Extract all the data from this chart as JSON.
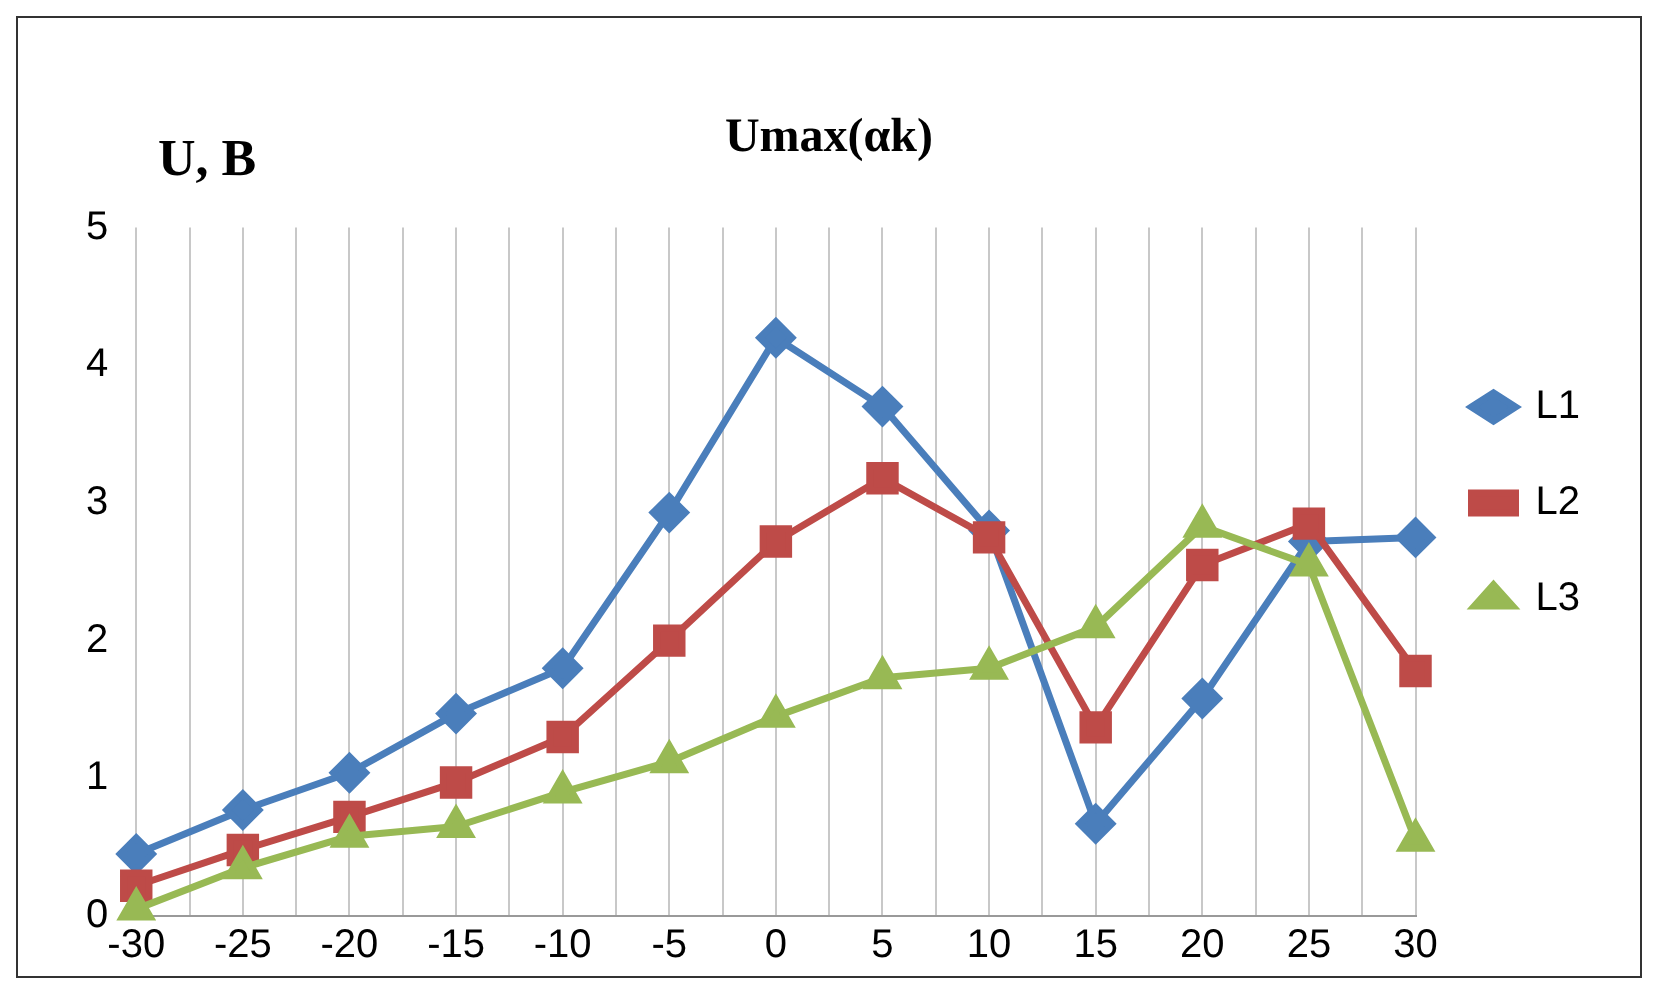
{
  "chart_data": {
    "type": "line",
    "title": "Umax(αk)",
    "ylabel": "U, B",
    "x": [
      -30,
      -25,
      -20,
      -15,
      -10,
      -5,
      0,
      5,
      10,
      15,
      20,
      25,
      30
    ],
    "xlim": [
      -30,
      30
    ],
    "xticks": [
      -30,
      {
        "value": -27.5,
        "label": null
      },
      -25,
      {
        "value": -22.5,
        "label": null
      },
      -20,
      {
        "value": -17.5,
        "label": null
      },
      -15,
      {
        "value": -12.5,
        "label": null
      },
      -10,
      {
        "value": -7.5,
        "label": null
      },
      -5,
      {
        "value": -2.5,
        "label": null
      },
      0,
      {
        "value": 2.5,
        "label": null
      },
      5,
      {
        "value": 7.5,
        "label": null
      },
      10,
      {
        "value": 12.5,
        "label": null
      },
      15,
      {
        "value": 17.5,
        "label": null
      },
      20,
      {
        "value": 22.5,
        "label": null
      },
      25,
      {
        "value": 27.5,
        "label": null
      },
      30
    ],
    "ylim": [
      0,
      5
    ],
    "yticks": [
      0,
      1,
      2,
      3,
      4,
      5
    ],
    "grid": "x",
    "legend": "right",
    "line_style": "solid",
    "series": [
      {
        "name": "L1",
        "color": "#4a7ebb",
        "marker": "diamond",
        "values": [
          0.45,
          0.77,
          1.04,
          1.47,
          1.8,
          2.93,
          4.2,
          3.7,
          2.8,
          0.67,
          1.58,
          2.72,
          2.75
        ]
      },
      {
        "name": "L2",
        "color": "#be4b48",
        "marker": "square",
        "values": [
          0.22,
          0.48,
          0.72,
          0.97,
          1.3,
          2.0,
          2.72,
          3.18,
          2.75,
          1.37,
          2.55,
          2.85,
          1.78
        ]
      },
      {
        "name": "L3",
        "color": "#98b954",
        "marker": "triangle",
        "values": [
          0.05,
          0.35,
          0.58,
          0.65,
          0.9,
          1.12,
          1.45,
          1.73,
          1.8,
          2.1,
          2.83,
          2.55,
          0.55
        ]
      }
    ]
  }
}
